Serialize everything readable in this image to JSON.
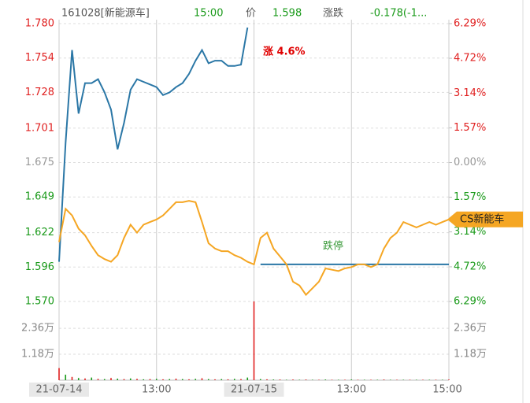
{
  "header": {
    "code": "161028[新能源车]",
    "time": "15:00",
    "price_label": "价",
    "price": "1.598",
    "change_label": "涨跌",
    "change": "-0.178(-1..."
  },
  "chart_data": {
    "type": "line",
    "x": [
      0,
      8,
      16,
      24,
      32,
      40,
      48,
      56,
      64,
      72,
      80,
      88,
      96,
      104,
      112,
      120,
      128,
      136,
      144,
      152,
      160,
      168,
      176,
      184,
      192,
      200,
      208,
      216,
      224,
      232,
      240,
      248,
      256,
      264,
      272,
      280,
      288,
      296,
      304,
      312,
      320,
      328,
      336,
      344,
      352,
      360,
      368,
      376,
      384,
      392,
      400,
      408,
      416,
      424,
      432,
      440,
      448,
      456,
      464,
      472,
      480
    ],
    "xlim": [
      0,
      480
    ],
    "xticks": [
      {
        "value": 0,
        "label": "21-07-14"
      },
      {
        "value": 120,
        "label": "13:00"
      },
      {
        "value": 240,
        "label": "21-07-15"
      },
      {
        "value": 360,
        "label": "13:00"
      },
      {
        "value": 480,
        "label": "15:00"
      }
    ],
    "ylim": [
      1.57,
      1.78
    ],
    "yticks": [
      {
        "value": 1.78,
        "label": "1.780"
      },
      1.754,
      1.728,
      1.701,
      1.675,
      1.649,
      1.622,
      1.596,
      {
        "value": 1.57,
        "label": "1.570"
      }
    ],
    "y2lim": [
      -6.29,
      6.29
    ],
    "y2ticks": [
      {
        "value": 6.29,
        "label": "6.29%"
      },
      {
        "value": 4.72,
        "label": "4.72%"
      },
      {
        "value": 3.14,
        "label": "3.14%"
      },
      {
        "value": 1.57,
        "label": "1.57%"
      },
      {
        "value": 0,
        "label": "0.00%"
      },
      {
        "value": -1.57,
        "label": "1.57%"
      },
      {
        "value": -3.14,
        "label": "3.14%"
      },
      {
        "value": -4.72,
        "label": "4.72%"
      },
      {
        "value": -6.29,
        "label": "6.29%"
      }
    ],
    "grid": true,
    "series": [
      {
        "color": "#2b77a6",
        "values": [
          1.6,
          1.69,
          1.76,
          1.712,
          1.735,
          1.735,
          1.738,
          1.728,
          1.715,
          1.685,
          1.705,
          1.73,
          1.738,
          1.736,
          1.734,
          1.732,
          1.726,
          1.728,
          1.732,
          1.735,
          1.742,
          1.752,
          1.76,
          1.75,
          1.752,
          1.752,
          1.748,
          1.748,
          1.749,
          1.777,
          null,
          1.598,
          1.598,
          1.598,
          1.598,
          1.598,
          1.598,
          1.598,
          1.598,
          1.598,
          1.598,
          1.598,
          1.598,
          1.598,
          1.598,
          1.598,
          1.598,
          1.598,
          1.598,
          1.598,
          1.598,
          1.598,
          1.598,
          1.598,
          1.598,
          1.598,
          1.598,
          1.598,
          1.598,
          1.598,
          1.598
        ]
      },
      {
        "name": "CS新能车",
        "color": "#f5a623",
        "values": [
          1.615,
          1.64,
          1.635,
          1.625,
          1.62,
          1.612,
          1.605,
          1.602,
          1.6,
          1.605,
          1.618,
          1.628,
          1.622,
          1.628,
          1.63,
          1.632,
          1.635,
          1.64,
          1.645,
          1.645,
          1.646,
          1.645,
          1.63,
          1.614,
          1.61,
          1.608,
          1.608,
          1.605,
          1.603,
          1.6,
          1.598,
          1.618,
          1.622,
          1.61,
          1.604,
          1.598,
          1.585,
          1.582,
          1.575,
          1.58,
          1.585,
          1.595,
          1.594,
          1.593,
          1.595,
          1.596,
          1.598,
          1.598,
          1.596,
          1.598,
          1.61,
          1.618,
          1.622,
          1.63,
          1.628,
          1.626,
          1.628,
          1.63,
          1.628,
          1.63,
          1.632
        ]
      }
    ],
    "volume": {
      "ylim": [
        0,
        3.58
      ],
      "yticks": [
        {
          "value": 2.36,
          "label": "2.36万"
        },
        {
          "value": 1.18,
          "label": "1.18万"
        }
      ],
      "values": [
        0.55,
        0.25,
        0.15,
        0.1,
        0.08,
        0.12,
        0.06,
        0.05,
        0.1,
        0.07,
        0.05,
        0.08,
        0.06,
        0.04,
        0.05,
        0.06,
        0.04,
        0.05,
        0.07,
        0.05,
        0.04,
        0.06,
        0.09,
        0.05,
        0.04,
        0.05,
        0.04,
        0.06,
        0.05,
        0.12,
        3.58,
        0.05,
        0.04,
        0.03,
        0.03,
        0.02,
        0.03,
        0.02,
        0.03,
        0.02,
        0.02,
        0.03,
        0.02,
        0.02,
        0.02,
        0.03,
        0.02,
        0.02,
        0.02,
        0.02,
        0.03,
        0.02,
        0.02,
        0.02,
        0.02,
        0.02,
        0.02,
        0.02,
        0.02,
        0.02,
        0.03
      ],
      "up_color": "#e02020",
      "down_color": "#1a9a1a"
    },
    "annotations": [
      {
        "text": "涨 4.6%",
        "color": "#e00000"
      },
      {
        "text": "跌停",
        "color": "#3a9a3a"
      }
    ]
  }
}
